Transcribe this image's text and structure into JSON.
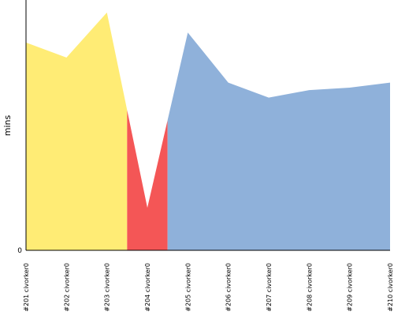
{
  "chart_data": {
    "type": "area",
    "ylabel": "mins",
    "categories": [
      "#201 civorker0",
      "#202 civorker0",
      "#203 civorker0",
      "#204 civorker0",
      "#205 civorker0",
      "#206 civorker0",
      "#207 civorker0",
      "#208 civorker0",
      "#209 civorker0",
      "#210 civorker0"
    ],
    "values": [
      41.5,
      38.5,
      47.5,
      8.5,
      43.5,
      33.5,
      30.5,
      32.0,
      32.5,
      33.5
    ],
    "statuses": [
      "unstable",
      "unstable",
      "unstable",
      "failed",
      "success",
      "success",
      "success",
      "success",
      "success",
      "success"
    ],
    "status_colors": {
      "unstable": "#ffec75",
      "failed": "#f45656",
      "success": "#8fb1da"
    },
    "y_ticks": [
      0
    ],
    "ylim": [
      0,
      50
    ],
    "grid": false,
    "legend": "none"
  }
}
